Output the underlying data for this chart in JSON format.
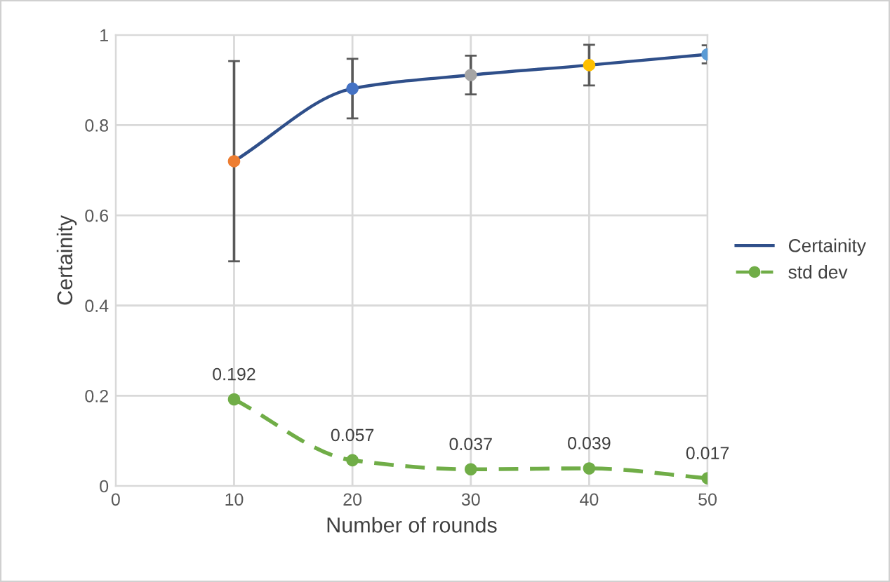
{
  "chart_data": {
    "type": "line",
    "xlabel": "Number of rounds",
    "ylabel": "Certainity",
    "x": [
      10,
      20,
      30,
      40,
      50
    ],
    "series": [
      {
        "name": "Certainity",
        "color": "#2f4f8a",
        "values": [
          0.72,
          0.881,
          0.911,
          0.933,
          0.957
        ],
        "errors": [
          0.222,
          0.066,
          0.043,
          0.045,
          0.02
        ],
        "colors": [
          "#ed7d31",
          "#4472c4",
          "#a5a5a5",
          "#ffc000",
          "#5b9bd5"
        ],
        "marker": "circle",
        "line_style": "solid"
      },
      {
        "name": "std dev",
        "color": "#70ad47",
        "values": [
          0.192,
          0.057,
          0.037,
          0.039,
          0.017
        ],
        "value_labels": [
          "0.192",
          "0.057",
          "0.037",
          "0.039",
          "0.017"
        ],
        "marker": "circle",
        "line_style": "dashed"
      }
    ],
    "xlim": [
      0,
      50
    ],
    "xticks": [
      0,
      10,
      20,
      30,
      40,
      50
    ],
    "ylim": [
      0,
      1
    ],
    "yticks": [
      0,
      0.2,
      0.4,
      0.6,
      0.8,
      1
    ],
    "grid": true,
    "legend": "right"
  }
}
